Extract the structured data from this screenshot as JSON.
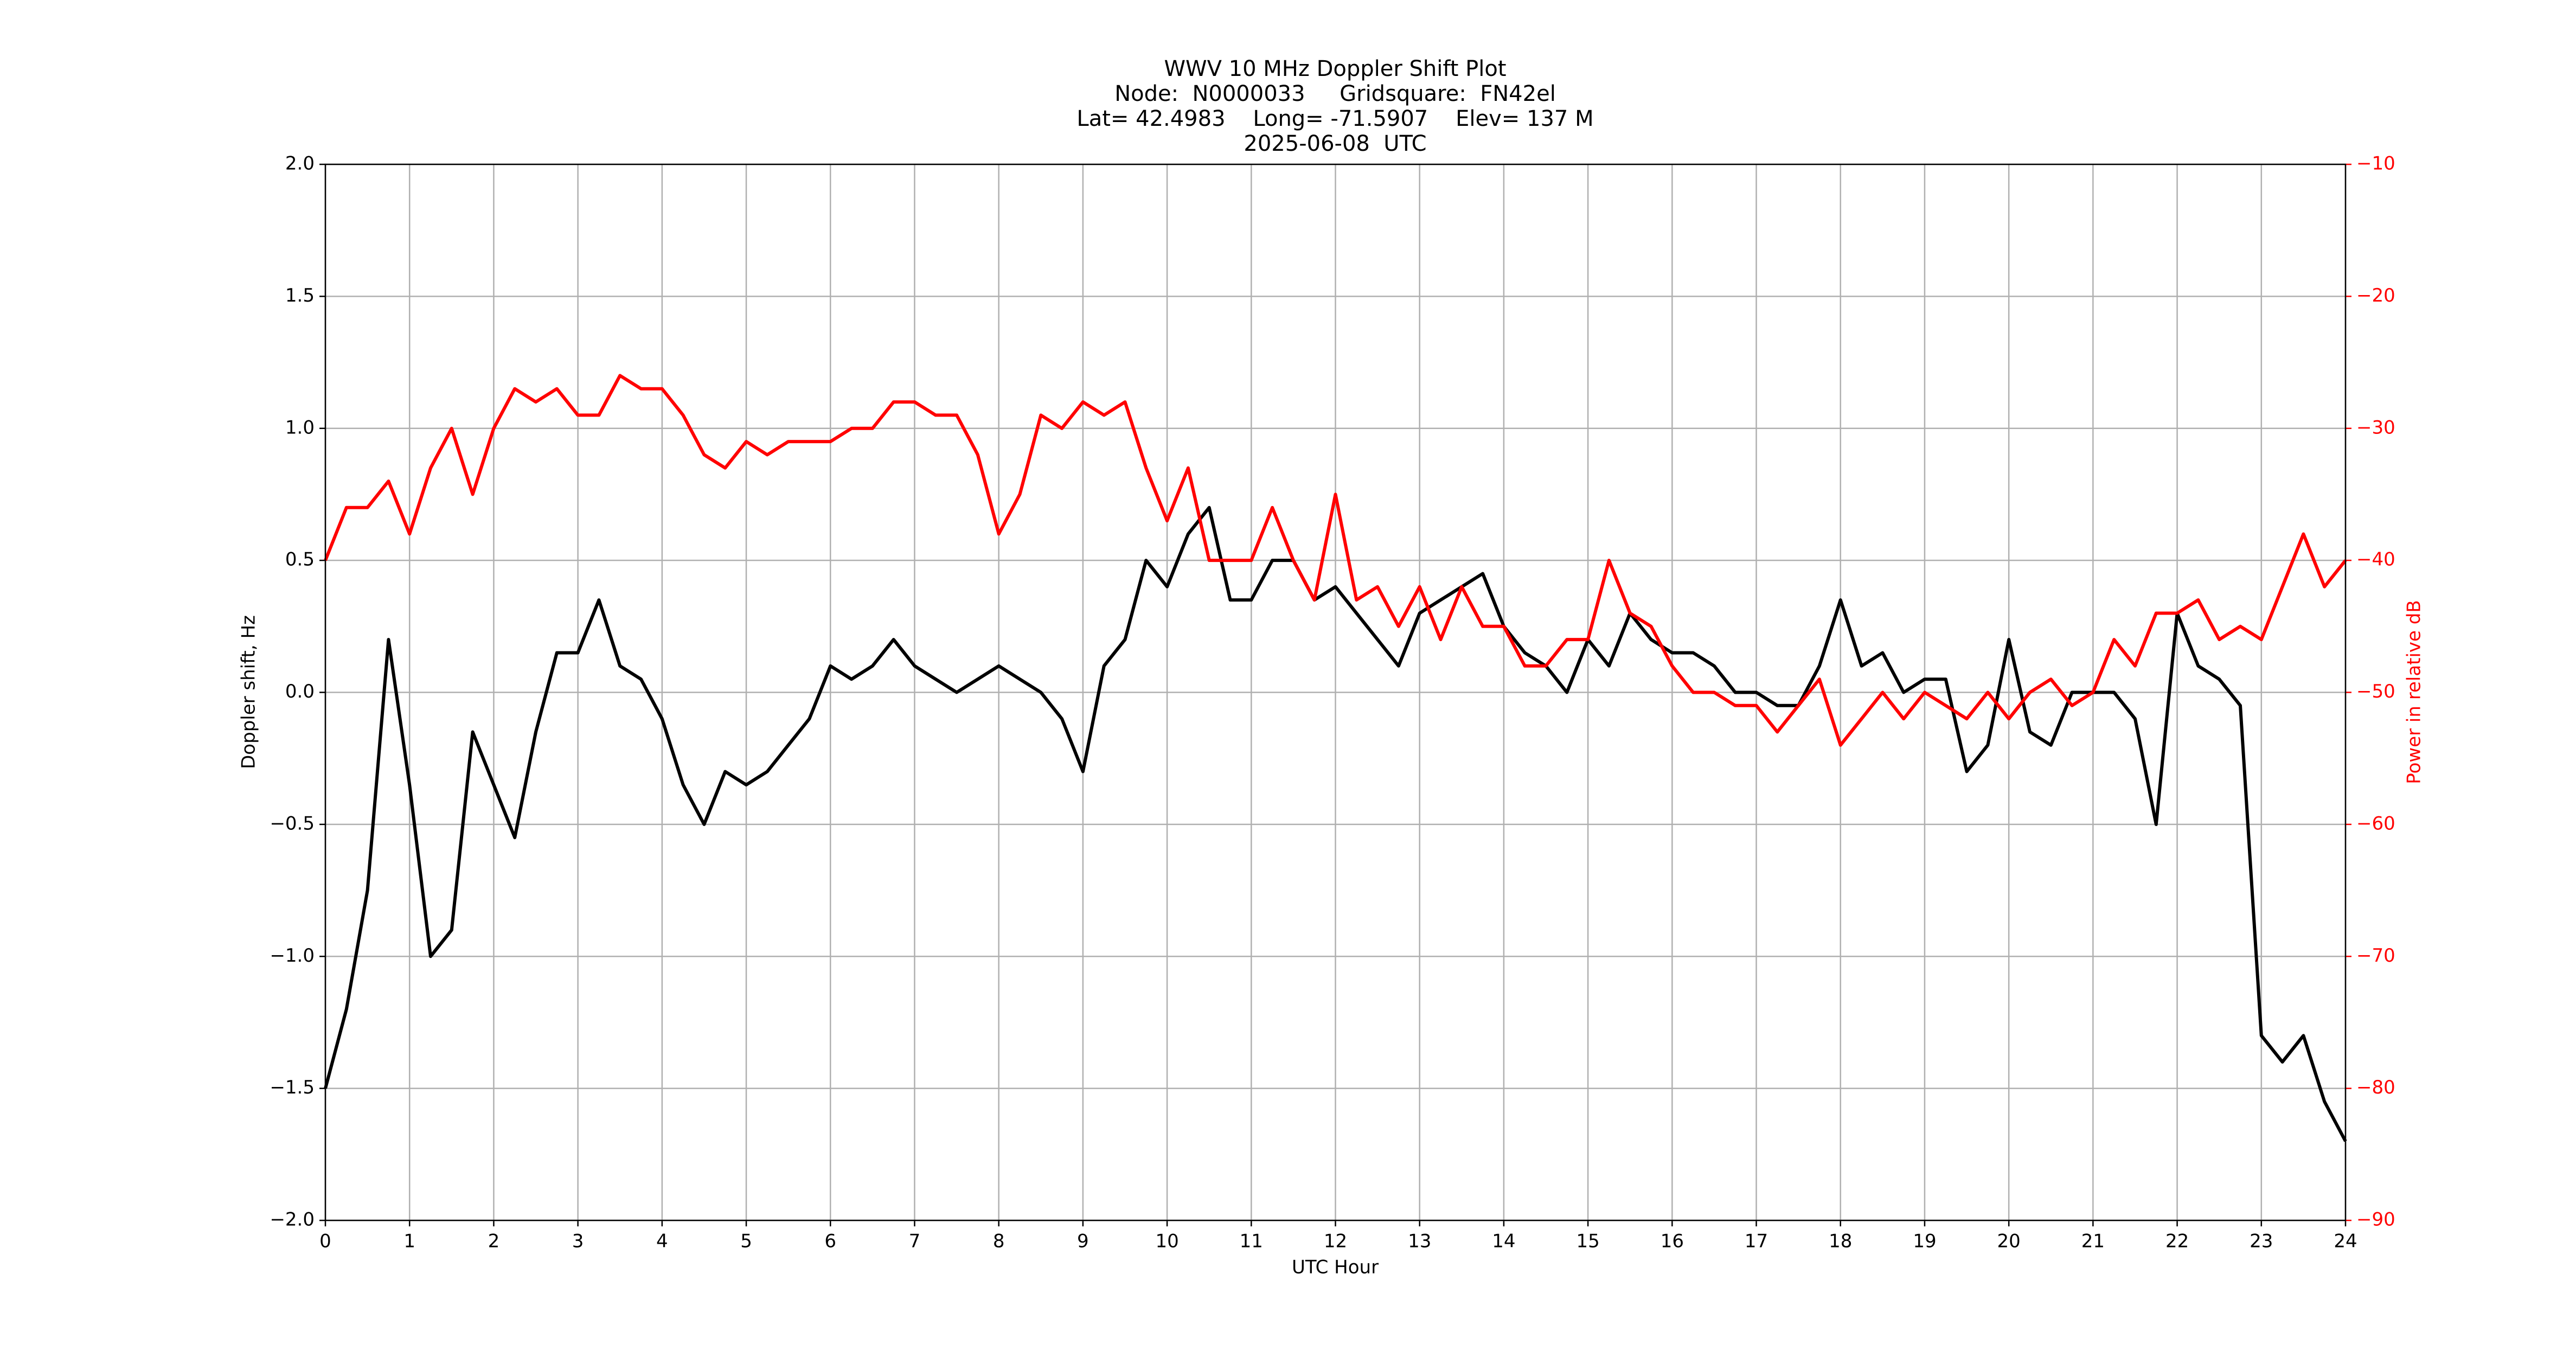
{
  "chart_data": {
    "type": "line",
    "title": [
      "WWV 10 MHz Doppler Shift Plot",
      "Node:  N0000033     Gridsquare:  FN42el",
      "Lat= 42.4983    Long= -71.5907    Elev= 137 M",
      "2025-06-08  UTC"
    ],
    "x_label": "UTC Hour",
    "y_label": "Doppler shift, Hz",
    "y2_label": "Power in relative dB",
    "x": [
      0,
      0.25,
      0.5,
      0.75,
      1,
      1.25,
      1.5,
      1.75,
      2,
      2.25,
      2.5,
      2.75,
      3,
      3.25,
      3.5,
      3.75,
      4,
      4.25,
      4.5,
      4.75,
      5,
      5.25,
      5.5,
      5.75,
      6,
      6.25,
      6.5,
      6.75,
      7,
      7.25,
      7.5,
      7.75,
      8,
      8.25,
      8.5,
      8.75,
      9,
      9.25,
      9.5,
      9.75,
      10,
      10.25,
      10.5,
      10.75,
      11,
      11.25,
      11.5,
      11.75,
      12,
      12.25,
      12.5,
      12.75,
      13,
      13.25,
      13.5,
      13.75,
      14,
      14.25,
      14.5,
      14.75,
      15,
      15.25,
      15.5,
      15.75,
      16,
      16.25,
      16.5,
      16.75,
      17,
      17.25,
      17.5,
      17.75,
      18,
      18.25,
      18.5,
      18.75,
      19,
      19.25,
      19.5,
      19.75,
      20,
      20.25,
      20.5,
      20.75,
      21,
      21.25,
      21.5,
      21.75,
      22,
      22.25,
      22.5,
      22.75,
      23,
      23.25,
      23.5,
      23.75,
      24
    ],
    "series": [
      {
        "name": "Doppler shift",
        "color": "#000000",
        "values": [
          -1.5,
          -1.2,
          -0.75,
          0.2,
          -0.35,
          -1.0,
          -0.9,
          -0.15,
          -0.35,
          -0.55,
          -0.15,
          0.15,
          0.15,
          0.35,
          0.1,
          0.05,
          -0.1,
          -0.35,
          -0.5,
          -0.3,
          -0.35,
          -0.3,
          -0.2,
          -0.1,
          0.1,
          0.05,
          0.1,
          0.2,
          0.1,
          0.05,
          0.0,
          0.05,
          0.1,
          0.05,
          0.0,
          -0.1,
          -0.3,
          0.1,
          0.2,
          0.5,
          0.4,
          0.6,
          0.7,
          0.35,
          0.35,
          0.5,
          0.5,
          0.35,
          0.4,
          0.3,
          0.2,
          0.1,
          0.3,
          0.35,
          0.4,
          0.45,
          0.25,
          0.15,
          0.1,
          0.0,
          0.2,
          0.1,
          0.3,
          0.2,
          0.15,
          0.15,
          0.1,
          0.0,
          0.0,
          -0.05,
          -0.05,
          0.1,
          0.35,
          0.1,
          0.15,
          0.0,
          0.05,
          0.05,
          -0.3,
          -0.2,
          0.2,
          -0.15,
          -0.2,
          0.0,
          0.0,
          0.0,
          -0.1,
          -0.5,
          0.3,
          0.1,
          0.05,
          -0.05,
          -1.3,
          -1.4,
          -1.3,
          -1.55,
          -1.7
        ]
      },
      {
        "name": "Power",
        "color": "#ff0000",
        "axis": "y2",
        "values": [
          -40,
          -36,
          -36,
          -34,
          -38,
          -33,
          -30,
          -35,
          -30,
          -27,
          -28,
          -27,
          -29,
          -29,
          -26,
          -27,
          -27,
          -29,
          -32,
          -33,
          -31,
          -32,
          -31,
          -31,
          -31,
          -30,
          -30,
          -28,
          -28,
          -29,
          -29,
          -32,
          -38,
          -35,
          -29,
          -30,
          -28,
          -29,
          -28,
          -33,
          -37,
          -33,
          -40,
          -40,
          -40,
          -36,
          -40,
          -43,
          -35,
          -43,
          -42,
          -45,
          -42,
          -46,
          -42,
          -45,
          -45,
          -48,
          -48,
          -46,
          -46,
          -40,
          -44,
          -45,
          -48,
          -50,
          -50,
          -51,
          -51,
          -53,
          -51,
          -49,
          -54,
          -52,
          -50,
          -52,
          -50,
          -51,
          -52,
          -50,
          -52,
          -50,
          -49,
          -51,
          -50,
          -46,
          -48,
          -44,
          -44,
          -43,
          -46,
          -45,
          -46,
          -42,
          -38,
          -42,
          -40
        ]
      }
    ],
    "xlim": [
      0,
      24
    ],
    "xticks": [
      0,
      1,
      2,
      3,
      4,
      5,
      6,
      7,
      8,
      9,
      10,
      11,
      12,
      13,
      14,
      15,
      16,
      17,
      18,
      19,
      20,
      21,
      22,
      23,
      24
    ],
    "ylim": [
      -2.0,
      2.0
    ],
    "yticks": [
      {
        "value": -2.0,
        "label": "−2.0"
      },
      {
        "value": -1.5,
        "label": "−1.5"
      },
      {
        "value": -1.0,
        "label": "−1.0"
      },
      {
        "value": -0.5,
        "label": "−0.5"
      },
      {
        "value": 0.0,
        "label": "0.0"
      },
      {
        "value": 0.5,
        "label": "0.5"
      },
      {
        "value": 1.0,
        "label": "1.0"
      },
      {
        "value": 1.5,
        "label": "1.5"
      },
      {
        "value": 2.0,
        "label": "2.0"
      }
    ],
    "y2lim": [
      -90,
      -10
    ],
    "y2ticks": [
      {
        "value": -90,
        "label": "−90"
      },
      {
        "value": -80,
        "label": "−80"
      },
      {
        "value": -70,
        "label": "−70"
      },
      {
        "value": -60,
        "label": "−60"
      },
      {
        "value": -50,
        "label": "−50"
      },
      {
        "value": -40,
        "label": "−40"
      },
      {
        "value": -30,
        "label": "−30"
      },
      {
        "value": -20,
        "label": "−20"
      },
      {
        "value": -10,
        "label": "−10"
      }
    ],
    "y2_color": "#ff0000",
    "grid": true
  }
}
